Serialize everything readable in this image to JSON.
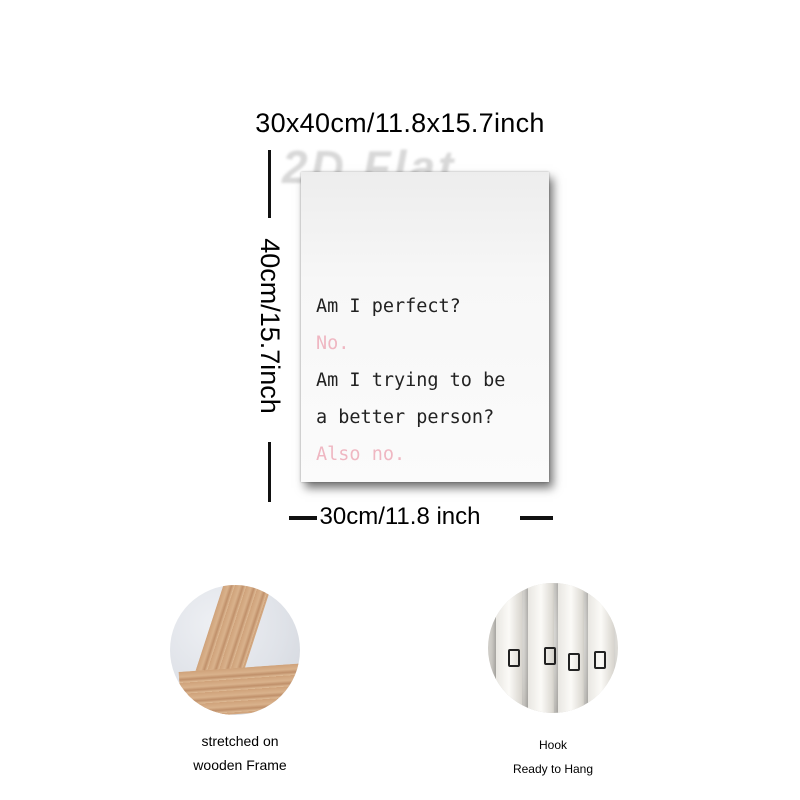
{
  "dimensions": {
    "top": "30x40cm/11.8x15.7inch",
    "side": "40cm/15.7inch",
    "bottom": "30cm/11.8 inch"
  },
  "watermark": "2D Flat",
  "quote": {
    "line1": "Am I perfect?",
    "line2": "No.",
    "line3": "Am I trying to be",
    "line4": "a better person?",
    "line5": "Also no."
  },
  "details": {
    "frame_caption_1": "stretched on",
    "frame_caption_2": "wooden Frame",
    "hook_caption_1": "Hook",
    "hook_caption_2": "Ready to Hang"
  },
  "colors": {
    "accent_text": "#efb7c2",
    "main_text": "#222222"
  }
}
